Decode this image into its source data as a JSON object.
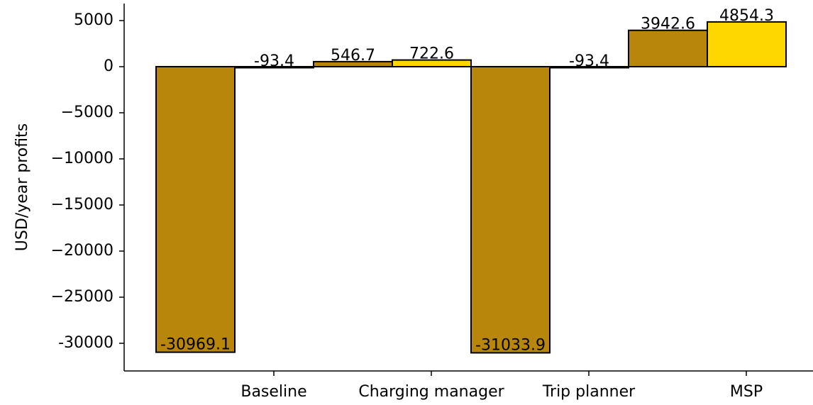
{
  "chart_data": {
    "type": "bar",
    "ylabel": "USD/year profits",
    "xlabel": "",
    "title": "",
    "ylim": [
      -33000,
      6500
    ],
    "yticks": [
      5000,
      0,
      -5000,
      -10000,
      -15000,
      -20000,
      -25000,
      -30000
    ],
    "ytick_labels": [
      "5000",
      "0",
      "−5000",
      "−10000",
      "−15000",
      "−20000",
      "−25000",
      "-30000"
    ],
    "categories": [
      "Baseline",
      "Charging manager",
      "Trip planner",
      "MSP"
    ],
    "bars": [
      {
        "value": -30969.1,
        "label": "-30969.1",
        "color": "#B8860B"
      },
      {
        "value": -93.4,
        "label": "-93.4",
        "color": "#FFD700"
      },
      {
        "value": 546.7,
        "label": "546.7",
        "color": "#B8860B"
      },
      {
        "value": 722.6,
        "label": "722.6",
        "color": "#FFD700"
      },
      {
        "value": -31033.9,
        "label": "-31033.9",
        "color": "#B8860B"
      },
      {
        "value": -93.4,
        "label": "-93.4",
        "color": "#FFD700"
      },
      {
        "value": 3942.6,
        "label": "3942.6",
        "color": "#B8860B"
      },
      {
        "value": 4854.3,
        "label": "4854.3",
        "color": "#FFD700"
      }
    ],
    "grid": false,
    "legend": "none"
  }
}
